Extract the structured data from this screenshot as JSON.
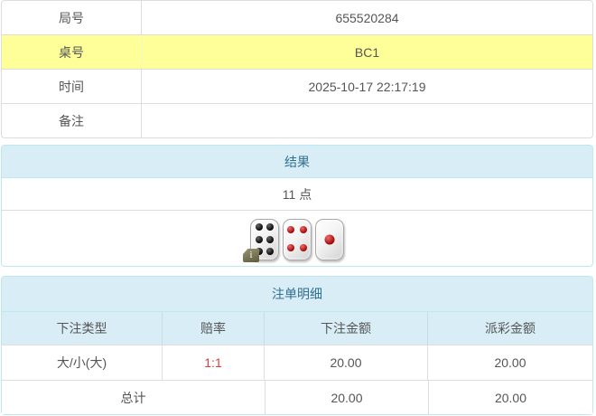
{
  "info_table": {
    "rows": [
      {
        "label": "局号",
        "value": "655520284",
        "highlight": false
      },
      {
        "label": "桌号",
        "value": "BC1",
        "highlight": true
      },
      {
        "label": "时间",
        "value": "2025-10-17 22:17:19",
        "highlight": false
      },
      {
        "label": "备注",
        "value": "",
        "highlight": false
      }
    ]
  },
  "result_panel": {
    "title": "结果",
    "points": "11 点",
    "dice": [
      {
        "value": 6,
        "color": "black"
      },
      {
        "value": 4,
        "color": "red"
      },
      {
        "value": 1,
        "color": "red"
      }
    ],
    "info_badge": "i"
  },
  "bets_panel": {
    "title": "注单明细",
    "columns": [
      "下注类型",
      "赔率",
      "下注金额",
      "派彩金额"
    ],
    "rows": [
      {
        "bet_type": "大/小(大)",
        "odds": "1:1",
        "bet_amount": "20.00",
        "payout": "20.00"
      }
    ],
    "total": {
      "label": "总计",
      "bet_amount": "20.00",
      "payout": "20.00"
    }
  },
  "colors": {
    "header_bg": "#d9edf7",
    "header_text": "#31708f",
    "panel_border": "#bce8f1",
    "row_border": "#dddddd",
    "highlight_row_bg": "#ffff99",
    "odds_red": "#e33a3a",
    "body_text": "#555555",
    "pip_black": "#000000",
    "pip_red": "#990000"
  }
}
